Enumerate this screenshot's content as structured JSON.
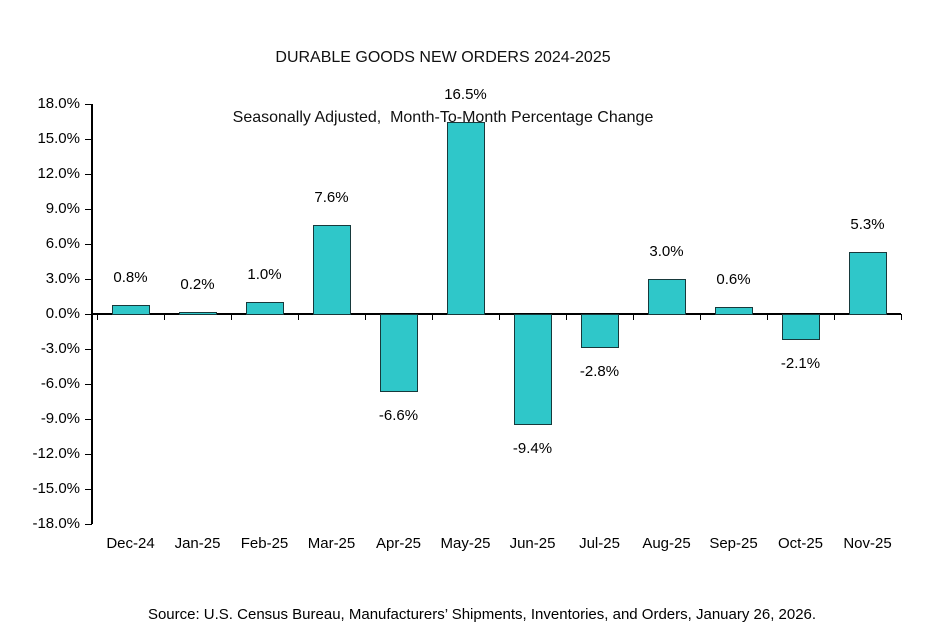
{
  "title": {
    "line1": "DURABLE GOODS NEW ORDERS 2024-2025",
    "line2": "Seasonally Adjusted,  Month-To-Month Percentage Change"
  },
  "source": {
    "text": "Source: U.S. Census Bureau, Manufacturers’ Shipments, Inventories, and Orders, January 26, 2026."
  },
  "chart_data": {
    "type": "bar",
    "title": "DURABLE GOODS NEW ORDERS 2024-2025",
    "subtitle": "Seasonally Adjusted,  Month-To-Month Percentage Change",
    "categories": [
      "Dec-24",
      "Jan-25",
      "Feb-25",
      "Mar-25",
      "Apr-25",
      "May-25",
      "Jun-25",
      "Jul-25",
      "Aug-25",
      "Sep-25",
      "Oct-25",
      "Nov-25"
    ],
    "values": [
      0.8,
      0.2,
      1.0,
      7.6,
      -6.6,
      16.5,
      -9.4,
      -2.8,
      3.0,
      0.6,
      -2.1,
      5.3
    ],
    "value_labels": [
      "0.8%",
      "0.2%",
      "1.0%",
      "7.6%",
      "-6.6%",
      "16.5%",
      "-9.4%",
      "-2.8%",
      "3.0%",
      "0.6%",
      "-2.1%",
      "5.3%"
    ],
    "xlabel": "",
    "ylabel": "",
    "ylim": [
      -18,
      18
    ],
    "ytick_step": 3,
    "ytick_labels": [
      "18.0%",
      "15.0%",
      "12.0%",
      "9.0%",
      "6.0%",
      "3.0%",
      "0.0%",
      "-3.0%",
      "-6.0%",
      "-9.0%",
      "-12.0%",
      "-15.0%",
      "-18.0%"
    ],
    "grid": false,
    "legend": false,
    "colors": {
      "bar_fill": "#2FC7C9",
      "bar_border": "#17393B",
      "axis": "#000000",
      "text": "#000000"
    }
  }
}
